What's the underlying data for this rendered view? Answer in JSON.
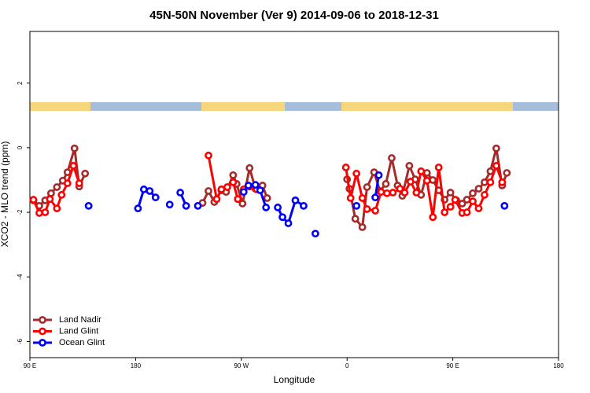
{
  "chart_data": {
    "type": "line",
    "title": "45N-50N November (Ver 9)   2014-09-06 to 2018-12-31",
    "x_label": "Longitude",
    "y_label": "XCO2 - MLO trend (ppm)",
    "xlim": [
      90,
      540
    ],
    "xticks": [
      {
        "value": 90,
        "label": "90 E"
      },
      {
        "value": 180,
        "label": "180"
      },
      {
        "value": 270,
        "label": "90 W"
      },
      {
        "value": 360,
        "label": "0"
      },
      {
        "value": 450,
        "label": "90 E"
      },
      {
        "value": 540,
        "label": "180"
      }
    ],
    "ylim": [
      -6.5,
      3.6
    ],
    "yticks": [
      -6,
      -4,
      -2,
      0,
      2
    ],
    "legend": "bottom-left",
    "series": [
      {
        "name": "Land Nadir",
        "color": "#a52a2a",
        "x": [
          93,
          98,
          103,
          108,
          113,
          118,
          122,
          128,
          132,
          137,
          null,
          237,
          242,
          247,
          253,
          257,
          263,
          266,
          271,
          277,
          282,
          288,
          292,
          null,
          360,
          362,
          367,
          373,
          377,
          383,
          388,
          393,
          398,
          403,
          407,
          413,
          418,
          423,
          428,
          433,
          438,
          443,
          448,
          453,
          458,
          462,
          467,
          472,
          477,
          482,
          487,
          492,
          496
        ],
        "values": [
          -1.63,
          -1.8,
          -1.63,
          -1.41,
          -1.22,
          -1.02,
          -0.76,
          -0.02,
          -1.2,
          -0.8,
          null,
          -1.71,
          -1.34,
          -1.68,
          -1.32,
          -1.37,
          -0.85,
          -1.12,
          -1.73,
          -0.63,
          -1.27,
          -1.17,
          -1.56,
          null,
          -0.98,
          -1.27,
          -2.2,
          -2.46,
          -1.22,
          -0.76,
          -1.34,
          -1.12,
          -0.32,
          -1.17,
          -1.49,
          -0.56,
          -0.98,
          -1.46,
          -0.78,
          -1.0,
          -1.32,
          -1.61,
          -1.39,
          -1.63,
          -1.73,
          -1.61,
          -1.41,
          -1.27,
          -1.07,
          -0.73,
          -0.02,
          -1.17,
          -0.78
        ]
      },
      {
        "name": "Land Glint",
        "color": "#ff0000",
        "x": [
          93,
          98,
          103,
          107,
          113,
          117,
          122,
          127,
          132,
          null,
          242,
          249,
          253,
          258,
          263,
          267,
          272,
          277,
          283,
          null,
          359,
          363,
          368,
          373,
          377,
          384,
          389,
          394,
          399,
          405,
          409,
          414,
          419,
          423,
          428,
          433,
          438,
          443,
          448,
          452,
          458,
          462,
          467,
          472,
          477,
          482,
          487,
          492
        ],
        "values": [
          -1.61,
          -2.02,
          -2.0,
          -1.59,
          -1.88,
          -1.46,
          -1.1,
          -0.56,
          -1.1,
          null,
          -0.24,
          -1.59,
          -1.29,
          -1.22,
          -1.07,
          -1.59,
          -1.29,
          -1.2,
          -1.29,
          null,
          -0.61,
          -1.56,
          -0.8,
          -1.56,
          -1.9,
          -1.95,
          -1.37,
          -1.41,
          -1.39,
          -1.27,
          -1.39,
          -1.05,
          -1.39,
          -0.73,
          -1.02,
          -2.15,
          -0.61,
          -2.0,
          -1.83,
          -1.61,
          -2.02,
          -2.0,
          -1.66,
          -1.88,
          -1.46,
          -1.07,
          -0.56,
          -1.07
        ]
      },
      {
        "name": "Ocean Glint",
        "color": "#0000ff",
        "x": [
          140,
          null,
          182,
          187,
          192,
          197,
          null,
          209,
          null,
          218,
          223,
          null,
          233,
          null,
          272,
          276,
          282,
          286,
          291,
          null,
          301,
          305,
          310,
          316,
          323,
          null,
          333,
          null,
          368,
          null,
          384,
          387,
          null,
          494
        ],
        "values": [
          -1.8,
          null,
          -1.88,
          -1.29,
          -1.34,
          -1.54,
          null,
          -1.76,
          null,
          -1.39,
          -1.8,
          null,
          -1.8,
          null,
          -1.37,
          -1.17,
          -1.15,
          -1.32,
          -1.85,
          null,
          -1.85,
          -2.15,
          -2.34,
          -1.63,
          -1.8,
          null,
          -2.66,
          null,
          -1.8,
          null,
          -1.54,
          -0.85,
          null,
          -1.8
        ]
      }
    ]
  }
}
